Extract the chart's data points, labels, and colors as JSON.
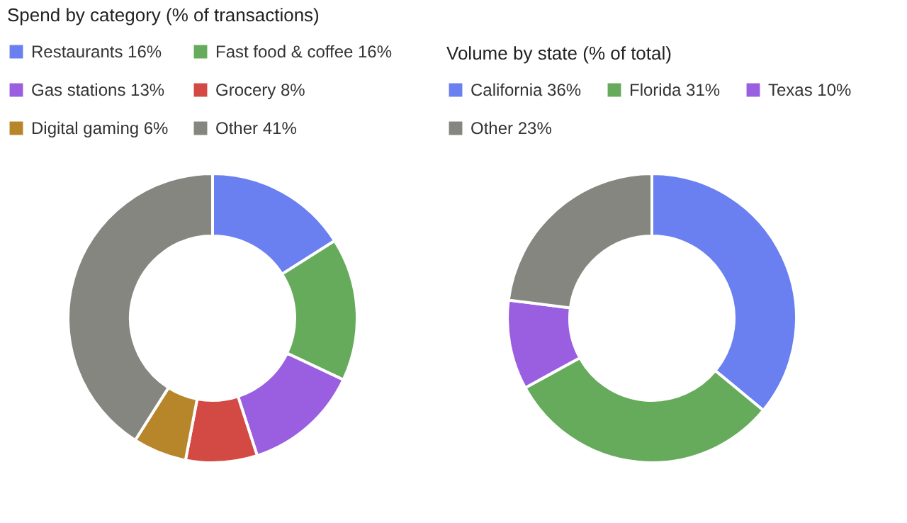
{
  "chart_data": [
    {
      "type": "donut",
      "title": "Spend by category (% of transactions)",
      "legend": "top",
      "categories": [
        "Restaurants 16%",
        "Fast food & coffee 16%",
        "Gas stations 13%",
        "Grocery 8%",
        "Digital gaming 6%",
        "Other 41%"
      ],
      "values": [
        16,
        16,
        13,
        8,
        6,
        41
      ],
      "colors": [
        "#6a7ff0",
        "#66ab5b",
        "#9a5fe0",
        "#d24a43",
        "#b8862a",
        "#868680"
      ]
    },
    {
      "type": "donut",
      "title": "Volume by state (% of total)",
      "legend": "top",
      "categories": [
        "California 36%",
        "Florida 31%",
        "Texas 10%",
        "Other 23%"
      ],
      "values": [
        36,
        31,
        10,
        23
      ],
      "colors": [
        "#6a7ff0",
        "#66ab5b",
        "#9a5fe0",
        "#868680"
      ]
    }
  ]
}
